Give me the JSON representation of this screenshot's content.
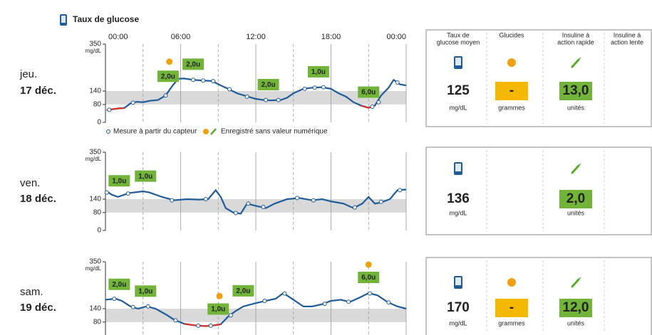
{
  "header": {
    "title": "Taux de glucose"
  },
  "columns": [
    [
      "Taux de",
      "glucose moyen"
    ],
    [
      "Glucides"
    ],
    [
      "Insuline à",
      "action rapide"
    ],
    [
      "Insuline à",
      "action lente"
    ]
  ],
  "days": [
    {
      "weekday": "jeu.",
      "date": "17 déc.",
      "avg": 125,
      "avg_unit": "mg/dL",
      "carbs": "-",
      "carbs_unit": "grammes",
      "insulin": "13,0",
      "insulin_unit": "unités"
    },
    {
      "weekday": "ven.",
      "date": "18 déc.",
      "avg": 136,
      "avg_unit": "mg/dL",
      "insulin": "2,0",
      "insulin_unit": "unités"
    },
    {
      "weekday": "sam.",
      "date": "19 déc.",
      "avg": 170,
      "avg_unit": "mg/dL",
      "carbs": "-",
      "carbs_unit": "grammes",
      "insulin": "12,0",
      "insulin_unit": "unités"
    }
  ],
  "chart_data": [
    {
      "type": "line",
      "xlim": [
        0,
        24
      ],
      "ylim": [
        0,
        350
      ],
      "xticks": [
        {
          "value": 0,
          "label": "00:00"
        },
        {
          "value": 6,
          "label": "06:00"
        },
        {
          "value": 12,
          "label": "12:00"
        },
        {
          "value": 18,
          "label": "18:00"
        },
        {
          "value": 24,
          "label": "00:00"
        }
      ],
      "xgrid": [
        0,
        6,
        12,
        18,
        24
      ],
      "xgrid_minor": [
        3,
        9,
        15,
        21
      ],
      "yticks": [
        0,
        80,
        140,
        350
      ],
      "y_unit": "mg/dL",
      "target_range": [
        80,
        140
      ],
      "color": "#1f5c99",
      "low_color": "#d9302a",
      "x": [
        0.1,
        0.5,
        1.0,
        1.5,
        2.0,
        2.5,
        3.0,
        3.5,
        4.2,
        4.8,
        5.3,
        5.8,
        6.3,
        7.0,
        7.8,
        8.5,
        9.2,
        9.8,
        10.5,
        11.2,
        12.0,
        12.6,
        13.2,
        14.0,
        14.5,
        15.0,
        15.8,
        16.5,
        17.3,
        18.0,
        18.6,
        19.2,
        19.8,
        20.4,
        21.0,
        21.5,
        22.0,
        22.6,
        23.0,
        23.5,
        24.0
      ],
      "values": [
        54,
        58,
        62,
        64,
        85,
        92,
        90,
        96,
        100,
        120,
        160,
        195,
        196,
        190,
        187,
        185,
        165,
        150,
        130,
        118,
        105,
        100,
        98,
        100,
        110,
        130,
        150,
        155,
        157,
        150,
        130,
        115,
        90,
        75,
        65,
        75,
        120,
        155,
        190,
        170,
        165
      ],
      "sensor": {
        "x": [
          0.3,
          2.2,
          4.8,
          7.0,
          7.8,
          8.6,
          9.9,
          11.3,
          12.8,
          13.8,
          15.9,
          16.7,
          17.4,
          21.3,
          21.8,
          23.3
        ],
        "values": [
          56,
          88,
          120,
          190,
          187,
          184,
          148,
          115,
          100,
          100,
          150,
          155,
          157,
          70,
          90,
          178
        ]
      },
      "insulin": {
        "x": [
          5.0,
          7.0,
          13.0,
          17.0,
          21.0
        ],
        "values": [
          2,
          2,
          2,
          1,
          6
        ],
        "value_labels": [
          "2,0u",
          "2,0u",
          "2,0u",
          "1,0u",
          "6,0u"
        ]
      },
      "carbs_x": [
        5.1
      ],
      "legend": [
        "Mesure à partir du capteur",
        "Enregistré sans valeur numérique"
      ]
    },
    {
      "type": "line",
      "xlim": [
        0,
        24
      ],
      "ylim": [
        0,
        350
      ],
      "xgrid": [
        0,
        6,
        12,
        18,
        24
      ],
      "xgrid_minor": [
        3,
        9,
        15,
        21
      ],
      "yticks": [
        0,
        80,
        140,
        350
      ],
      "y_unit": "mg/dL",
      "target_range": [
        80,
        140
      ],
      "color": "#1f5c99",
      "low_color": "#d9302a",
      "x": [
        0.1,
        0.5,
        1.0,
        1.5,
        2.0,
        3.0,
        3.5,
        4.5,
        5.5,
        6.5,
        7.5,
        8.2,
        8.8,
        9.2,
        9.6,
        10.2,
        10.8,
        11.3,
        12.0,
        12.8,
        13.5,
        14.5,
        15.5,
        16.5,
        17.3,
        18.0,
        19.0,
        19.8,
        20.5,
        21.0,
        21.5,
        22.0,
        22.7,
        23.3,
        24.0
      ],
      "values": [
        175,
        160,
        150,
        160,
        168,
        175,
        170,
        150,
        135,
        140,
        138,
        140,
        180,
        150,
        100,
        80,
        75,
        120,
        110,
        100,
        120,
        140,
        145,
        135,
        140,
        130,
        120,
        100,
        120,
        150,
        120,
        125,
        140,
        180,
        183
      ],
      "sensor": {
        "x": [
          0.1,
          1.8,
          5.3,
          8.0,
          10.4,
          11.4,
          12.6,
          15.3,
          16.6,
          19.9,
          22.0,
          23.5
        ],
        "values": [
          170,
          165,
          135,
          140,
          78,
          120,
          105,
          145,
          135,
          103,
          128,
          180
        ]
      },
      "insulin": {
        "x": [
          1.1,
          3.2
        ],
        "values": [
          1,
          1
        ],
        "value_labels": [
          "1,0u",
          "1,0u"
        ]
      },
      "carbs_x": []
    },
    {
      "type": "line",
      "xlim": [
        0,
        24
      ],
      "ylim": [
        0,
        350
      ],
      "xgrid": [
        0,
        6,
        12,
        18,
        24
      ],
      "xgrid_minor": [
        3,
        9,
        15,
        21
      ],
      "yticks": [
        80,
        140,
        350
      ],
      "y_unit": "mg/dL",
      "target_range": [
        80,
        140
      ],
      "color": "#1f5c99",
      "low_color": "#d9302a",
      "x": [
        0.0,
        0.8,
        1.3,
        2.0,
        2.6,
        3.3,
        4.0,
        4.8,
        5.5,
        6.3,
        7.2,
        8.0,
        8.6,
        9.2,
        9.8,
        10.4,
        11.0,
        12.0,
        12.8,
        13.6,
        14.2,
        15.0,
        15.8,
        16.5,
        17.3,
        18.0,
        18.8,
        19.5,
        20.3,
        21.0,
        21.7,
        22.5,
        23.3,
        24.0
      ],
      "values": [
        180,
        185,
        175,
        150,
        140,
        150,
        140,
        115,
        90,
        72,
        65,
        62,
        65,
        70,
        105,
        130,
        150,
        165,
        175,
        185,
        210,
        180,
        150,
        150,
        160,
        175,
        180,
        170,
        190,
        210,
        200,
        170,
        150,
        140
      ],
      "sensor": {
        "x": [
          0.7,
          2.2,
          3.4,
          5.6,
          7.4,
          8.4,
          10.0,
          12.7,
          14.3,
          17.5,
          19.4,
          21.1,
          22.6
        ],
        "values": [
          184,
          147,
          150,
          88,
          64,
          64,
          110,
          175,
          208,
          162,
          171,
          208,
          168
        ]
      },
      "insulin": {
        "x": [
          1.1,
          3.2,
          9.0,
          11.0,
          21.0
        ],
        "values": [
          2,
          1,
          1,
          2,
          6
        ],
        "value_labels": [
          "2,0u",
          "1,0u",
          "1,0u",
          "2,0u",
          "6,0u"
        ]
      },
      "carbs_x": [
        9.1,
        21.0
      ]
    }
  ]
}
